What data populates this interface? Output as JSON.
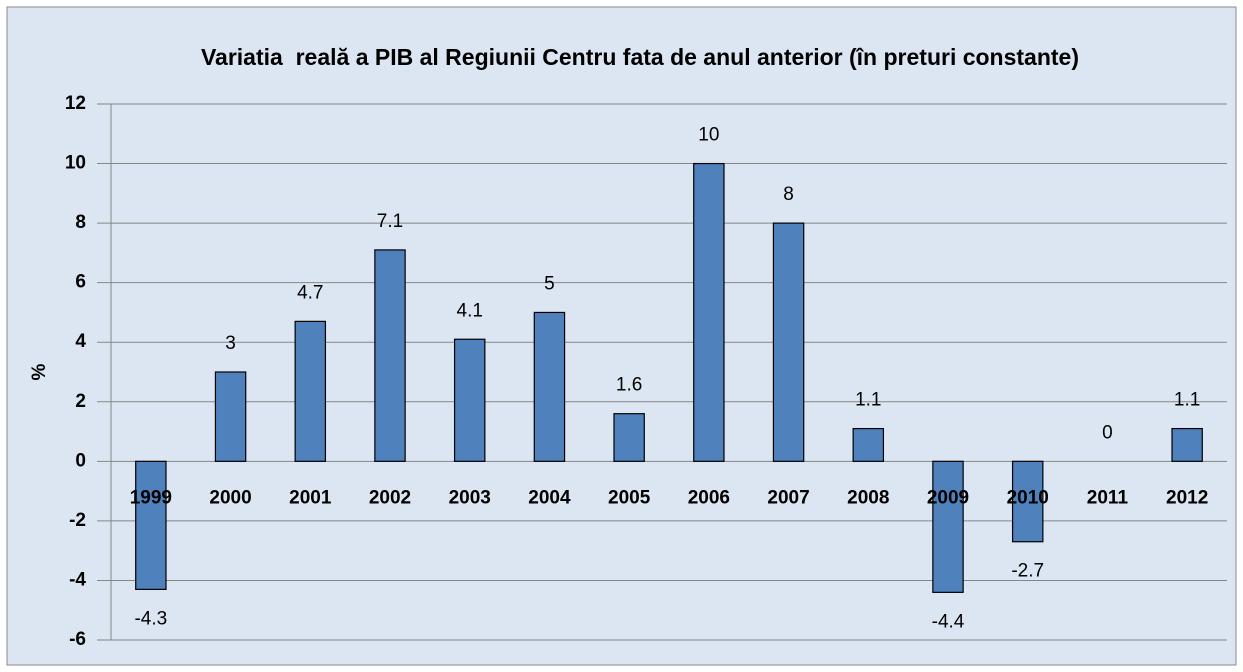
{
  "chart_data": {
    "type": "bar",
    "title": "Variatia  reală a PIB al Regiunii Centru fata de anul anterior (în preturi constante)",
    "y_label": "%",
    "categories": [
      "1999",
      "2000",
      "2001",
      "2002",
      "2003",
      "2004",
      "2005",
      "2006",
      "2007",
      "2008",
      "2009",
      "2010",
      "2011",
      "2012"
    ],
    "values": [
      -4.3,
      3,
      4.7,
      7.1,
      4.1,
      5,
      1.6,
      10,
      8,
      1.1,
      -4.4,
      -2.7,
      0,
      1.1
    ],
    "color": "#4f81bd",
    "ylim": [
      -6,
      12
    ],
    "yticks": [
      -6,
      -4,
      -2,
      0,
      2,
      4,
      6,
      8,
      10,
      12
    ],
    "grid": true
  }
}
